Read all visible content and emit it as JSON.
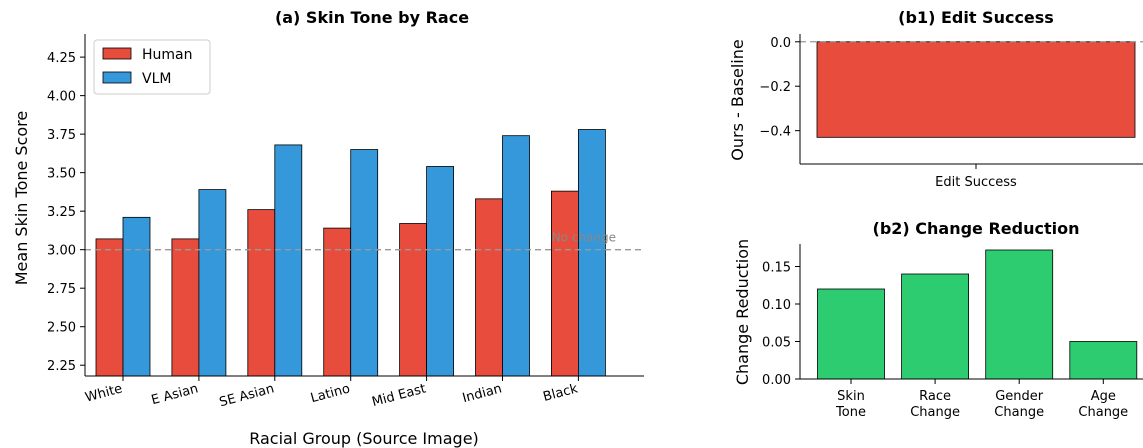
{
  "chart_data": [
    {
      "type": "bar",
      "title": "(a) Skin Tone by Race",
      "xlabel": "Racial Group (Source Image)",
      "ylabel": "Mean Skin Tone Score",
      "categories": [
        "White",
        "E Asian",
        "SE Asian",
        "Latino",
        "Mid East",
        "Indian",
        "Black"
      ],
      "series": [
        {
          "name": "Human",
          "color": "#e74c3c",
          "values": [
            3.07,
            3.07,
            3.26,
            3.14,
            3.17,
            3.33,
            3.38
          ]
        },
        {
          "name": "VLM",
          "color": "#3498db",
          "values": [
            3.21,
            3.39,
            3.68,
            3.65,
            3.54,
            3.74,
            3.78
          ]
        }
      ],
      "ylim": [
        2.18,
        4.4
      ],
      "yticks": [
        "2.25",
        "2.50",
        "2.75",
        "3.00",
        "3.25",
        "3.50",
        "3.75",
        "4.00",
        "4.25"
      ],
      "reference_line": {
        "y": 3.0,
        "label": "No change",
        "style": "dashed"
      },
      "legend": "top-left",
      "grid": false
    },
    {
      "type": "bar",
      "title": "(b1) Edit Success",
      "xlabel": "",
      "ylabel": "Ours - Baseline",
      "categories": [
        "Edit Success"
      ],
      "values": [
        -0.43
      ],
      "color": "#e74c3c",
      "ylim": [
        -0.55,
        0.035
      ],
      "yticks": [
        "0.0",
        "−0.2",
        "−0.4"
      ],
      "reference_line": {
        "y": 0,
        "style": "dashed"
      },
      "grid": false
    },
    {
      "type": "bar",
      "title": "(b2) Change Reduction",
      "xlabel": "",
      "ylabel": "Change Reduction",
      "categories": [
        [
          "Skin",
          "Tone"
        ],
        [
          "Race",
          "Change"
        ],
        [
          "Gender",
          "Change"
        ],
        [
          "Age",
          "Change"
        ]
      ],
      "values": [
        0.12,
        0.14,
        0.172,
        0.05
      ],
      "color": "#2ecc71",
      "ylim": [
        0,
        0.18
      ],
      "yticks": [
        "0.00",
        "0.05",
        "0.10",
        "0.15"
      ],
      "grid": false
    }
  ]
}
